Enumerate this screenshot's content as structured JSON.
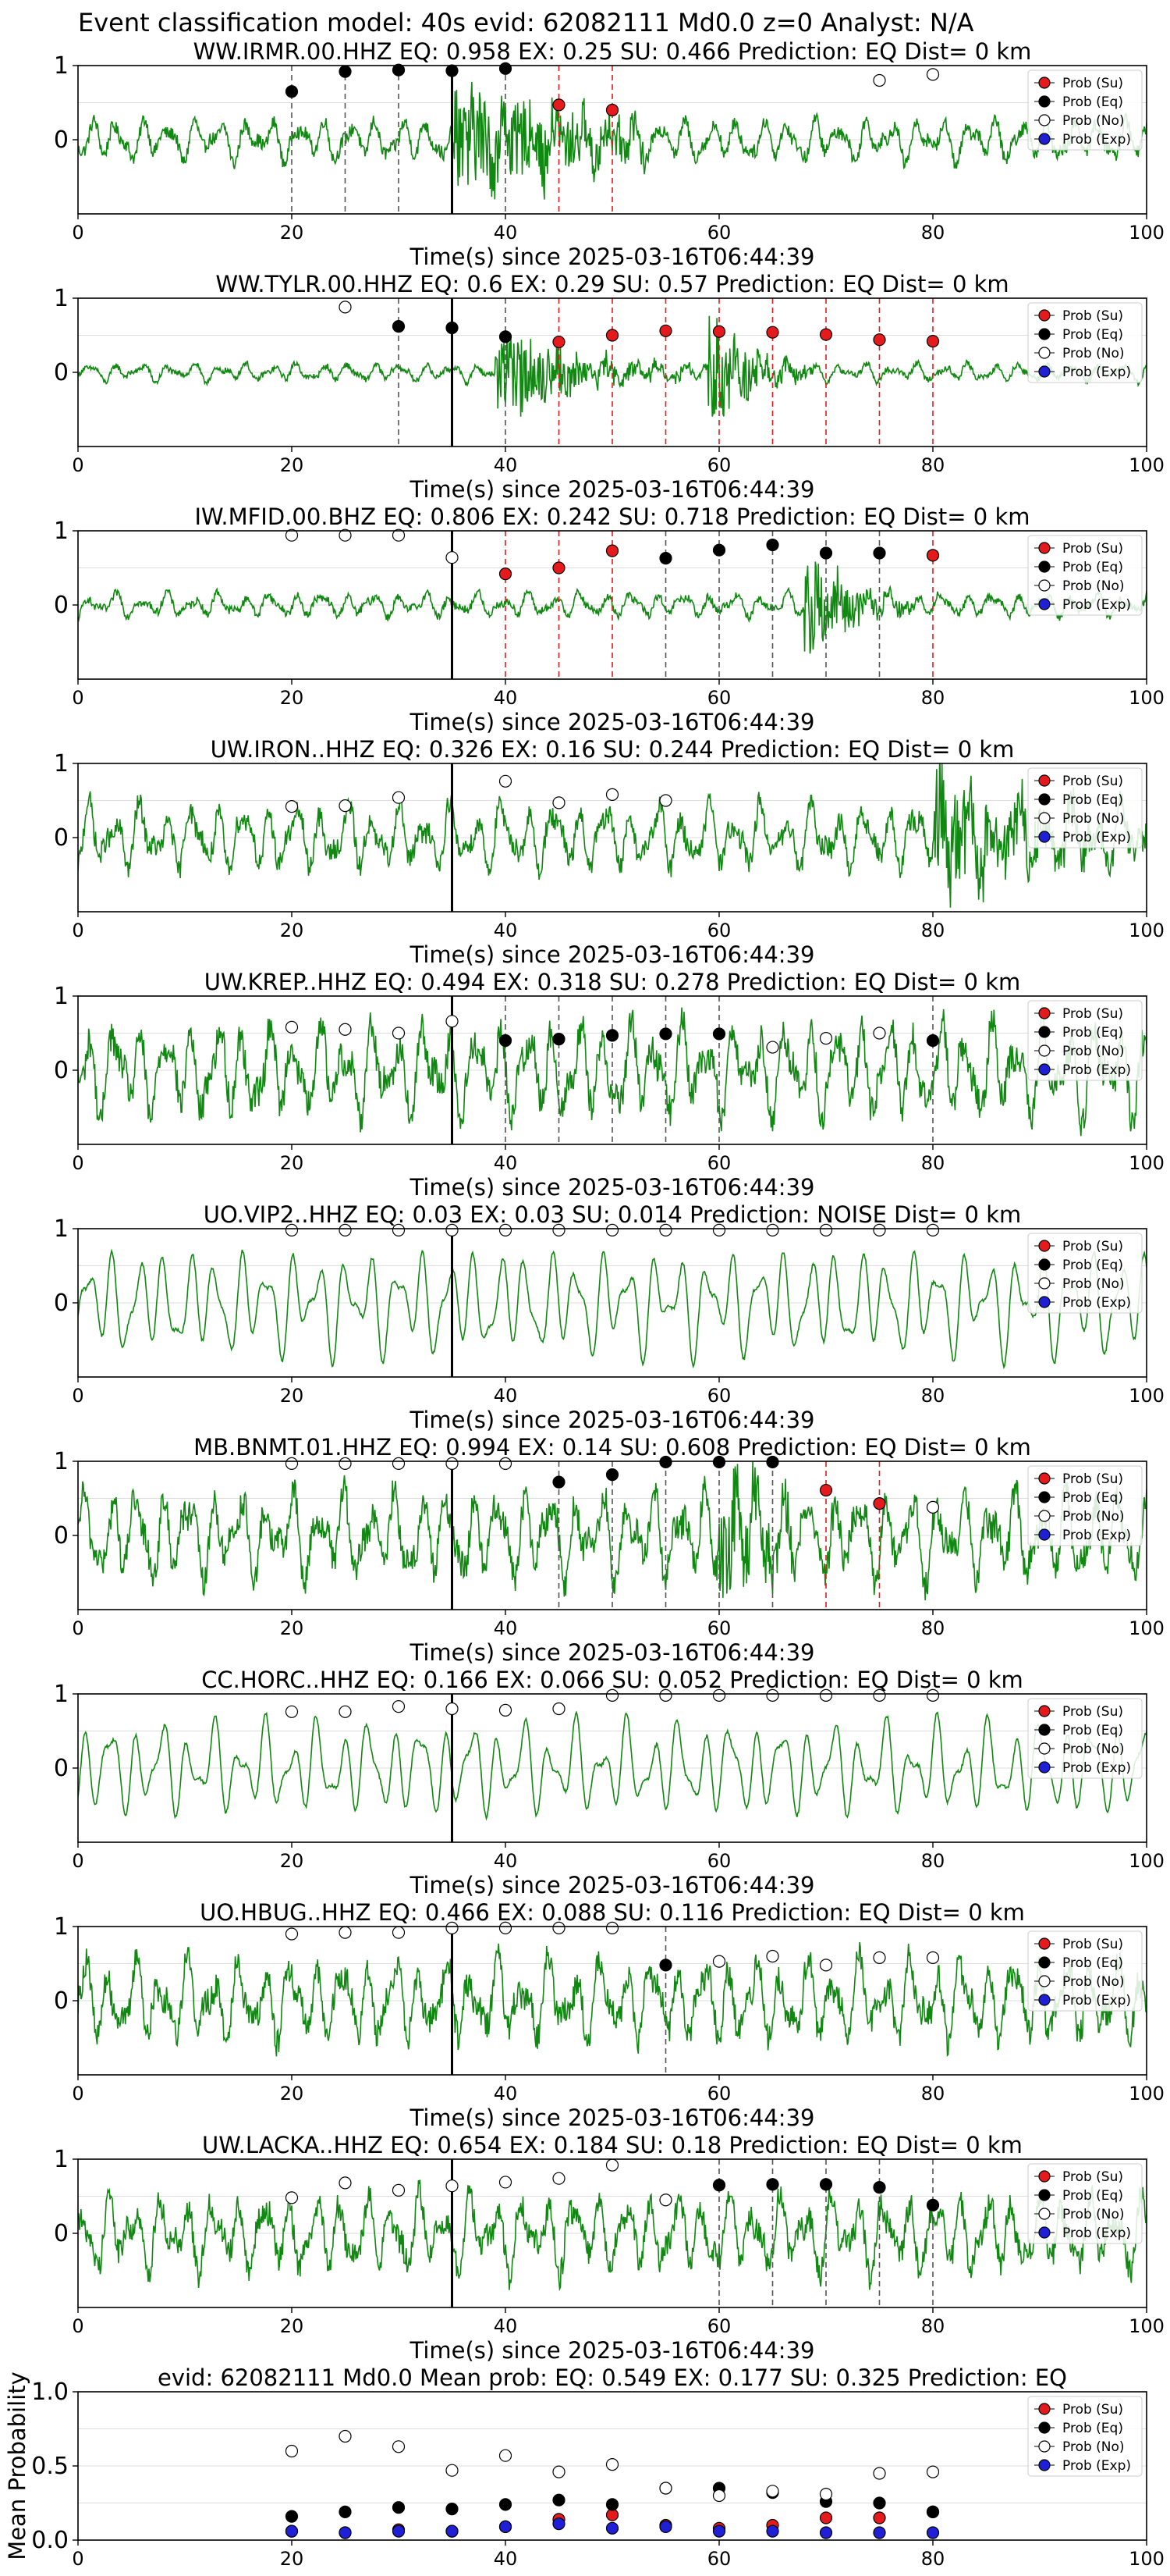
{
  "figure": {
    "suptitle": "Event classification model: 40s evid: 62082111 Md0.0 z=0 Analyst: N/A",
    "xlabel": "Time(s) since 2025-03-16T06:44:39",
    "legend": [
      "Prob (Su)",
      "Prob (Eq)",
      "Prob (No)",
      "Prob (Exp)"
    ],
    "colors": {
      "su": "#e41a1c",
      "eq": "#000000",
      "no": "#ffffff",
      "exp": "#1f1fd6",
      "waveform": "#118811",
      "grid": "#dddddd"
    }
  },
  "chart_data": [
    {
      "type": "line",
      "title": "WW.IRMR.00.HHZ   EQ: 0.958  EX: 0.25  SU: 0.466   Prediction: EQ    Dist= 0 km",
      "xlim": [
        0,
        100
      ],
      "ylim": [
        -1,
        1
      ],
      "yticks": [
        0,
        1
      ],
      "pick_time": 35,
      "amplitude": 0.35,
      "burst": [
        [
          35,
          0.9,
          1.1,
          12
        ]
      ],
      "points": [
        {
          "x": 20,
          "y": 0.65,
          "cls": "eq"
        },
        {
          "x": 25,
          "y": 0.92,
          "cls": "eq"
        },
        {
          "x": 30,
          "y": 0.94,
          "cls": "eq"
        },
        {
          "x": 35,
          "y": 0.93,
          "cls": "eq"
        },
        {
          "x": 40,
          "y": 0.96,
          "cls": "eq"
        },
        {
          "x": 45,
          "y": 0.47,
          "cls": "su"
        },
        {
          "x": 50,
          "y": 0.4,
          "cls": "su"
        },
        {
          "x": 75,
          "y": 0.8,
          "cls": "no"
        },
        {
          "x": 80,
          "y": 0.88,
          "cls": "no"
        }
      ]
    },
    {
      "type": "line",
      "title": "WW.TYLR.00.HHZ   EQ: 0.6  EX: 0.29  SU: 0.57   Prediction: EQ    Dist= 0 km",
      "xlim": [
        0,
        100
      ],
      "ylim": [
        -1,
        1
      ],
      "yticks": [
        0,
        1
      ],
      "pick_time": 35,
      "amplitude": 0.15,
      "burst": [
        [
          39,
          0.8,
          0.5,
          14
        ],
        [
          59,
          1.0,
          0.9,
          4
        ]
      ],
      "points": [
        {
          "x": 25,
          "y": 0.88,
          "cls": "no"
        },
        {
          "x": 30,
          "y": 0.62,
          "cls": "eq"
        },
        {
          "x": 35,
          "y": 0.6,
          "cls": "eq"
        },
        {
          "x": 40,
          "y": 0.48,
          "cls": "eq"
        },
        {
          "x": 45,
          "y": 0.41,
          "cls": "su"
        },
        {
          "x": 50,
          "y": 0.5,
          "cls": "su"
        },
        {
          "x": 55,
          "y": 0.56,
          "cls": "su"
        },
        {
          "x": 60,
          "y": 0.55,
          "cls": "su"
        },
        {
          "x": 65,
          "y": 0.54,
          "cls": "su"
        },
        {
          "x": 70,
          "y": 0.51,
          "cls": "su"
        },
        {
          "x": 75,
          "y": 0.44,
          "cls": "su"
        },
        {
          "x": 80,
          "y": 0.42,
          "cls": "su"
        }
      ]
    },
    {
      "type": "line",
      "title": "IW.MFID.00.BHZ   EQ: 0.806  EX: 0.242  SU: 0.718   Prediction: EQ    Dist= 0 km",
      "xlim": [
        0,
        100
      ],
      "ylim": [
        -1,
        1
      ],
      "yticks": [
        0,
        1
      ],
      "pick_time": 35,
      "amplitude": 0.2,
      "burst": [
        [
          68,
          0.9,
          0.8,
          5
        ]
      ],
      "points": [
        {
          "x": 20,
          "y": 0.94,
          "cls": "no"
        },
        {
          "x": 25,
          "y": 0.94,
          "cls": "no"
        },
        {
          "x": 30,
          "y": 0.94,
          "cls": "no"
        },
        {
          "x": 35,
          "y": 0.64,
          "cls": "no"
        },
        {
          "x": 40,
          "y": 0.42,
          "cls": "su"
        },
        {
          "x": 45,
          "y": 0.5,
          "cls": "su"
        },
        {
          "x": 50,
          "y": 0.73,
          "cls": "su"
        },
        {
          "x": 55,
          "y": 0.63,
          "cls": "eq"
        },
        {
          "x": 60,
          "y": 0.74,
          "cls": "eq"
        },
        {
          "x": 65,
          "y": 0.81,
          "cls": "eq"
        },
        {
          "x": 70,
          "y": 0.7,
          "cls": "eq"
        },
        {
          "x": 75,
          "y": 0.7,
          "cls": "eq"
        },
        {
          "x": 80,
          "y": 0.67,
          "cls": "su"
        }
      ]
    },
    {
      "type": "line",
      "title": "UW.IRON..HHZ   EQ: 0.326  EX: 0.16  SU: 0.244   Prediction: EQ    Dist= 0 km",
      "xlim": [
        0,
        100
      ],
      "ylim": [
        -1,
        1
      ],
      "yticks": [
        0,
        1
      ],
      "pick_time": 35,
      "amplitude": 0.55,
      "burst": [
        [
          80,
          0.9,
          0.5,
          20
        ]
      ],
      "points": [
        {
          "x": 20,
          "y": 0.42,
          "cls": "no"
        },
        {
          "x": 25,
          "y": 0.43,
          "cls": "no"
        },
        {
          "x": 30,
          "y": 0.54,
          "cls": "no"
        },
        {
          "x": 40,
          "y": 0.76,
          "cls": "no"
        },
        {
          "x": 45,
          "y": 0.47,
          "cls": "no"
        },
        {
          "x": 50,
          "y": 0.58,
          "cls": "no"
        },
        {
          "x": 55,
          "y": 0.5,
          "cls": "no"
        }
      ]
    },
    {
      "type": "line",
      "title": "UW.KREP..HHZ   EQ: 0.494  EX: 0.318  SU: 0.278   Prediction: EQ    Dist= 0 km",
      "xlim": [
        0,
        100
      ],
      "ylim": [
        -1,
        1
      ],
      "yticks": [
        0,
        1
      ],
      "pick_time": 35,
      "amplitude": 0.8,
      "burst": [],
      "points": [
        {
          "x": 20,
          "y": 0.58,
          "cls": "no"
        },
        {
          "x": 25,
          "y": 0.55,
          "cls": "no"
        },
        {
          "x": 30,
          "y": 0.5,
          "cls": "no"
        },
        {
          "x": 35,
          "y": 0.66,
          "cls": "no"
        },
        {
          "x": 40,
          "y": 0.4,
          "cls": "eq"
        },
        {
          "x": 45,
          "y": 0.42,
          "cls": "eq"
        },
        {
          "x": 50,
          "y": 0.47,
          "cls": "eq"
        },
        {
          "x": 55,
          "y": 0.49,
          "cls": "eq"
        },
        {
          "x": 60,
          "y": 0.49,
          "cls": "eq"
        },
        {
          "x": 65,
          "y": 0.31,
          "cls": "no"
        },
        {
          "x": 70,
          "y": 0.43,
          "cls": "no"
        },
        {
          "x": 75,
          "y": 0.5,
          "cls": "no"
        },
        {
          "x": 80,
          "y": 0.4,
          "cls": "eq"
        }
      ]
    },
    {
      "type": "line",
      "title": "UO.VIP2..HHZ   EQ: 0.03  EX: 0.03  SU: 0.014   Prediction: NOISE    Dist= 0 km",
      "xlim": [
        0,
        100
      ],
      "ylim": [
        -1,
        1
      ],
      "yticks": [
        0,
        1
      ],
      "pick_time": 35,
      "amplitude": 0.9,
      "smooth": true,
      "burst": [],
      "points": [
        {
          "x": 20,
          "y": 0.98,
          "cls": "no"
        },
        {
          "x": 25,
          "y": 0.98,
          "cls": "no"
        },
        {
          "x": 30,
          "y": 0.98,
          "cls": "no"
        },
        {
          "x": 35,
          "y": 0.98,
          "cls": "no"
        },
        {
          "x": 40,
          "y": 0.98,
          "cls": "no"
        },
        {
          "x": 45,
          "y": 0.98,
          "cls": "no"
        },
        {
          "x": 50,
          "y": 0.98,
          "cls": "no"
        },
        {
          "x": 55,
          "y": 0.98,
          "cls": "no"
        },
        {
          "x": 60,
          "y": 0.98,
          "cls": "no"
        },
        {
          "x": 65,
          "y": 0.98,
          "cls": "no"
        },
        {
          "x": 70,
          "y": 0.98,
          "cls": "no"
        },
        {
          "x": 75,
          "y": 0.98,
          "cls": "no"
        },
        {
          "x": 80,
          "y": 0.98,
          "cls": "no"
        }
      ]
    },
    {
      "type": "line",
      "title": "MB.BNMT.01.HHZ   EQ: 0.994  EX: 0.14  SU: 0.608   Prediction: EQ    Dist= 0 km",
      "xlim": [
        0,
        100
      ],
      "ylim": [
        -1,
        1
      ],
      "yticks": [
        0,
        1
      ],
      "pick_time": 35,
      "amplitude": 0.75,
      "burst": [
        [
          60,
          0.9,
          0.6,
          8
        ]
      ],
      "points": [
        {
          "x": 20,
          "y": 0.97,
          "cls": "no"
        },
        {
          "x": 25,
          "y": 0.97,
          "cls": "no"
        },
        {
          "x": 30,
          "y": 0.97,
          "cls": "no"
        },
        {
          "x": 35,
          "y": 0.97,
          "cls": "no"
        },
        {
          "x": 40,
          "y": 0.97,
          "cls": "no"
        },
        {
          "x": 45,
          "y": 0.72,
          "cls": "eq"
        },
        {
          "x": 50,
          "y": 0.82,
          "cls": "eq"
        },
        {
          "x": 55,
          "y": 0.99,
          "cls": "eq"
        },
        {
          "x": 60,
          "y": 0.99,
          "cls": "eq"
        },
        {
          "x": 65,
          "y": 0.99,
          "cls": "eq"
        },
        {
          "x": 70,
          "y": 0.61,
          "cls": "su"
        },
        {
          "x": 75,
          "y": 0.43,
          "cls": "su"
        },
        {
          "x": 80,
          "y": 0.38,
          "cls": "no"
        }
      ]
    },
    {
      "type": "line",
      "title": "CC.HORC..HHZ   EQ: 0.166  EX: 0.066  SU: 0.052   Prediction: EQ    Dist= 0 km",
      "xlim": [
        0,
        100
      ],
      "ylim": [
        -1,
        1
      ],
      "yticks": [
        0,
        1
      ],
      "pick_time": 35,
      "amplitude": 0.8,
      "smooth": true,
      "burst": [],
      "points": [
        {
          "x": 20,
          "y": 0.76,
          "cls": "no"
        },
        {
          "x": 25,
          "y": 0.76,
          "cls": "no"
        },
        {
          "x": 30,
          "y": 0.83,
          "cls": "no"
        },
        {
          "x": 35,
          "y": 0.8,
          "cls": "no"
        },
        {
          "x": 40,
          "y": 0.78,
          "cls": "no"
        },
        {
          "x": 45,
          "y": 0.8,
          "cls": "no"
        },
        {
          "x": 50,
          "y": 0.98,
          "cls": "no"
        },
        {
          "x": 55,
          "y": 0.98,
          "cls": "no"
        },
        {
          "x": 60,
          "y": 0.98,
          "cls": "no"
        },
        {
          "x": 65,
          "y": 0.98,
          "cls": "no"
        },
        {
          "x": 70,
          "y": 0.98,
          "cls": "no"
        },
        {
          "x": 75,
          "y": 0.98,
          "cls": "no"
        },
        {
          "x": 80,
          "y": 0.98,
          "cls": "no"
        }
      ]
    },
    {
      "type": "line",
      "title": "UO.HBUG..HHZ   EQ: 0.466  EX: 0.088  SU: 0.116   Prediction: EQ    Dist= 0 km",
      "xlim": [
        0,
        100
      ],
      "ylim": [
        -1,
        1
      ],
      "yticks": [
        0,
        1
      ],
      "pick_time": 35,
      "amplitude": 0.7,
      "burst": [],
      "points": [
        {
          "x": 20,
          "y": 0.9,
          "cls": "no"
        },
        {
          "x": 25,
          "y": 0.92,
          "cls": "no"
        },
        {
          "x": 30,
          "y": 0.92,
          "cls": "no"
        },
        {
          "x": 35,
          "y": 0.98,
          "cls": "no"
        },
        {
          "x": 40,
          "y": 0.98,
          "cls": "no"
        },
        {
          "x": 45,
          "y": 0.98,
          "cls": "no"
        },
        {
          "x": 50,
          "y": 0.98,
          "cls": "no"
        },
        {
          "x": 55,
          "y": 0.48,
          "cls": "eq"
        },
        {
          "x": 60,
          "y": 0.53,
          "cls": "no"
        },
        {
          "x": 65,
          "y": 0.6,
          "cls": "no"
        },
        {
          "x": 70,
          "y": 0.48,
          "cls": "no"
        },
        {
          "x": 75,
          "y": 0.58,
          "cls": "no"
        },
        {
          "x": 80,
          "y": 0.58,
          "cls": "no"
        }
      ]
    },
    {
      "type": "line",
      "title": "UW.LACKA..HHZ   EQ: 0.654  EX: 0.184  SU: 0.18   Prediction: EQ    Dist= 0 km",
      "xlim": [
        0,
        100
      ],
      "ylim": [
        -1,
        1
      ],
      "yticks": [
        0,
        1
      ],
      "pick_time": 35,
      "amplitude": 0.65,
      "burst": [],
      "points": [
        {
          "x": 20,
          "y": 0.48,
          "cls": "no"
        },
        {
          "x": 25,
          "y": 0.68,
          "cls": "no"
        },
        {
          "x": 30,
          "y": 0.58,
          "cls": "no"
        },
        {
          "x": 35,
          "y": 0.64,
          "cls": "no"
        },
        {
          "x": 40,
          "y": 0.69,
          "cls": "no"
        },
        {
          "x": 45,
          "y": 0.74,
          "cls": "no"
        },
        {
          "x": 50,
          "y": 0.92,
          "cls": "no"
        },
        {
          "x": 55,
          "y": 0.45,
          "cls": "no"
        },
        {
          "x": 60,
          "y": 0.65,
          "cls": "eq"
        },
        {
          "x": 65,
          "y": 0.66,
          "cls": "eq"
        },
        {
          "x": 70,
          "y": 0.66,
          "cls": "eq"
        },
        {
          "x": 75,
          "y": 0.62,
          "cls": "eq"
        },
        {
          "x": 80,
          "y": 0.38,
          "cls": "eq"
        }
      ]
    },
    {
      "type": "scatter",
      "title": "evid: 62082111  Md0.0   Mean prob:   EQ: 0.549  EX: 0.177  SU: 0.325   Prediction: EQ",
      "ylabel": "Mean Probability",
      "xlim": [
        0,
        100
      ],
      "ylim": [
        0,
        1
      ],
      "yticks": [
        0,
        0.5,
        1
      ],
      "ytick_labels": [
        "0.0",
        "0.5",
        "1.0"
      ],
      "series": [
        {
          "name": "Prob (Su)",
          "cls": "su",
          "x": [
            20,
            25,
            30,
            35,
            40,
            45,
            50,
            55,
            60,
            65,
            70,
            75,
            80
          ],
          "y": [
            0.06,
            0.05,
            0.07,
            0.06,
            0.09,
            0.14,
            0.17,
            0.1,
            0.08,
            0.1,
            0.15,
            0.15,
            0.19
          ]
        },
        {
          "name": "Prob (Eq)",
          "cls": "eq",
          "x": [
            20,
            25,
            30,
            35,
            40,
            45,
            50,
            55,
            60,
            65,
            70,
            75,
            80
          ],
          "y": [
            0.16,
            0.19,
            0.22,
            0.21,
            0.24,
            0.27,
            0.24,
            0.35,
            0.35,
            0.32,
            0.26,
            0.25,
            0.19
          ]
        },
        {
          "name": "Prob (No)",
          "cls": "no",
          "x": [
            20,
            25,
            30,
            35,
            40,
            45,
            50,
            55,
            60,
            65,
            70,
            75,
            80
          ],
          "y": [
            0.6,
            0.7,
            0.63,
            0.47,
            0.57,
            0.46,
            0.51,
            0.35,
            0.3,
            0.33,
            0.31,
            0.45,
            0.46
          ]
        },
        {
          "name": "Prob (Exp)",
          "cls": "exp",
          "x": [
            20,
            25,
            30,
            35,
            40,
            45,
            50,
            55,
            60,
            65,
            70,
            75,
            80
          ],
          "y": [
            0.06,
            0.05,
            0.06,
            0.06,
            0.09,
            0.11,
            0.08,
            0.09,
            0.06,
            0.06,
            0.05,
            0.05,
            0.05
          ]
        }
      ]
    }
  ]
}
